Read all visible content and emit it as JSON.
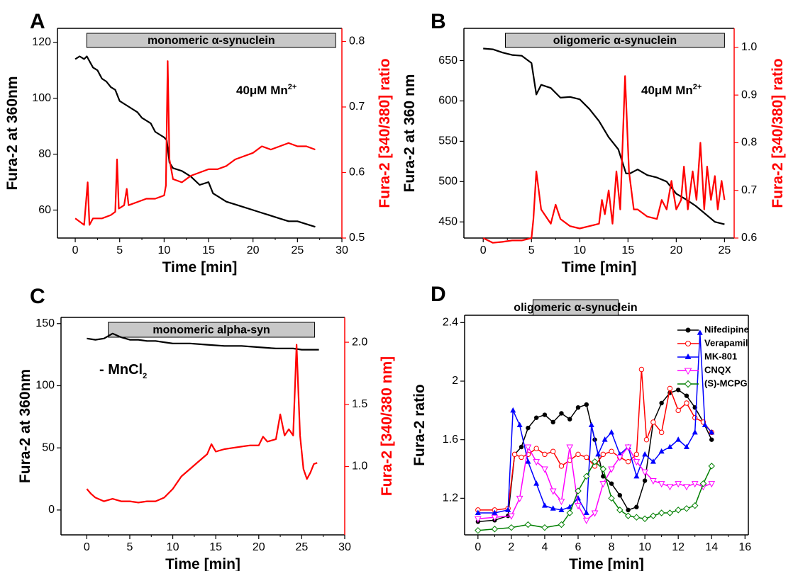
{
  "colors": {
    "black": "#000000",
    "red": "#ff0000",
    "blue": "#0000ff",
    "magenta": "#ff00ff",
    "green": "#007f00",
    "banner": "#c8c8c8"
  },
  "chart_data": [
    {
      "panel": "A",
      "type": "line",
      "banner": "monomeric α-synuclein",
      "annotation": "40μM Mn",
      "annotation_sup": "2+",
      "xlabel": "Time [min]",
      "ylabel": "Fura-2 at 360nm",
      "ylabel_right": "Fura-2 [340/380] ratio",
      "xlim": [
        -2,
        30
      ],
      "ylim": [
        50,
        125
      ],
      "ylim_right": [
        0.5,
        0.82
      ],
      "xticks": [
        0,
        5,
        10,
        15,
        20,
        25,
        30
      ],
      "yticks": [
        60,
        80,
        100,
        120
      ],
      "yticks_right": [
        0.5,
        0.6,
        0.7,
        0.8
      ],
      "series": [
        {
          "axis": "left",
          "color": "black",
          "x": [
            0,
            0.5,
            1,
            1.3,
            2,
            2.5,
            3,
            3.5,
            4,
            4.5,
            5,
            6,
            7,
            7.5,
            8,
            8.5,
            9,
            9.5,
            10,
            10.3,
            10.6,
            11,
            12,
            12.5,
            13,
            14,
            15,
            15.5,
            16,
            17,
            18,
            19,
            20,
            21,
            22,
            23,
            24,
            25,
            26,
            27
          ],
          "y": [
            114,
            115,
            114,
            115,
            111,
            110,
            107,
            106,
            104,
            103,
            99,
            97,
            95,
            93,
            92,
            91,
            88,
            87,
            86,
            85,
            77,
            75,
            74,
            73,
            72,
            69,
            70,
            66,
            65,
            63,
            62,
            61,
            60,
            59,
            58,
            57,
            56,
            56,
            55,
            54
          ]
        },
        {
          "axis": "right",
          "color": "red",
          "x": [
            0,
            1,
            1.4,
            1.6,
            2,
            3,
            4,
            4.5,
            4.7,
            4.9,
            5.5,
            5.8,
            6,
            7,
            8,
            9,
            10,
            10.2,
            10.4,
            10.6,
            11,
            12,
            13,
            14,
            15,
            16,
            17,
            18,
            19,
            20,
            21,
            22,
            23,
            24,
            25,
            26,
            27
          ],
          "y": [
            0.53,
            0.52,
            0.585,
            0.52,
            0.53,
            0.53,
            0.535,
            0.54,
            0.62,
            0.545,
            0.55,
            0.575,
            0.55,
            0.555,
            0.56,
            0.56,
            0.565,
            0.58,
            0.77,
            0.62,
            0.59,
            0.585,
            0.595,
            0.6,
            0.605,
            0.605,
            0.61,
            0.62,
            0.625,
            0.63,
            0.64,
            0.635,
            0.64,
            0.645,
            0.64,
            0.64,
            0.635
          ]
        }
      ]
    },
    {
      "panel": "B",
      "type": "line",
      "banner": "oligomeric α-synuclein",
      "annotation": "40μM Mn",
      "annotation_sup": "2+",
      "xlabel": "Time [min]",
      "ylabel": "Fura-2 at 360 nm",
      "ylabel_right": "Fura-2 [340/380] ratio",
      "xlim": [
        -2,
        26
      ],
      "ylim": [
        430,
        690
      ],
      "ylim_right": [
        0.6,
        1.04
      ],
      "xticks": [
        0,
        5,
        10,
        15,
        20,
        25
      ],
      "yticks": [
        450,
        500,
        550,
        600,
        650
      ],
      "yticks_right": [
        0.6,
        0.7,
        0.8,
        0.9,
        1.0
      ],
      "series": [
        {
          "axis": "left",
          "color": "black",
          "x": [
            0,
            1,
            2,
            3,
            4,
            5,
            5.5,
            6,
            7,
            8,
            9,
            10,
            11,
            12,
            13,
            14,
            14.8,
            15.2,
            16,
            17,
            18,
            19,
            20,
            21,
            22,
            23,
            24,
            25
          ],
          "y": [
            665,
            664,
            660,
            657,
            656,
            647,
            608,
            620,
            616,
            604,
            605,
            602,
            590,
            575,
            555,
            540,
            510,
            510,
            515,
            508,
            505,
            500,
            485,
            478,
            470,
            460,
            450,
            447
          ]
        },
        {
          "axis": "right",
          "color": "red",
          "x": [
            0,
            0.5,
            1,
            2,
            3,
            4,
            5,
            5.2,
            5.5,
            6,
            7,
            7.5,
            8,
            9,
            10,
            11,
            12,
            12.3,
            12.6,
            13,
            13.4,
            13.8,
            14.2,
            14.7,
            15.1,
            15.6,
            16,
            17,
            18,
            18.5,
            19,
            19.5,
            20,
            20.5,
            20.8,
            21.2,
            21.7,
            22.1,
            22.5,
            22.9,
            23.2,
            23.6,
            24,
            24.3,
            24.7,
            25
          ],
          "y": [
            0.6,
            0.595,
            0.59,
            0.592,
            0.595,
            0.595,
            0.6,
            0.64,
            0.74,
            0.66,
            0.63,
            0.67,
            0.64,
            0.625,
            0.62,
            0.625,
            0.63,
            0.68,
            0.65,
            0.7,
            0.63,
            0.74,
            0.66,
            0.94,
            0.74,
            0.66,
            0.66,
            0.645,
            0.64,
            0.68,
            0.66,
            0.72,
            0.66,
            0.68,
            0.75,
            0.66,
            0.74,
            0.68,
            0.8,
            0.66,
            0.75,
            0.68,
            0.73,
            0.66,
            0.72,
            0.68
          ]
        }
      ]
    },
    {
      "panel": "C",
      "type": "line",
      "banner": "monomeric alpha-syn",
      "annotation": "- MnCl",
      "annotation_sub": "2",
      "xlabel": "Time [min]",
      "ylabel": "Fura-2 at 360nm",
      "ylabel_right": "Fura-2 [340/380 nm]",
      "xlim": [
        -3,
        30
      ],
      "ylim": [
        -20,
        155
      ],
      "ylim_right": [
        0.45,
        2.2
      ],
      "xticks": [
        0,
        5,
        10,
        15,
        20,
        25,
        30
      ],
      "yticks": [
        0,
        50,
        100,
        150
      ],
      "yticks_right": [
        1.0,
        1.5,
        2.0
      ],
      "series": [
        {
          "axis": "left",
          "color": "black",
          "x": [
            0,
            1,
            2,
            3,
            4,
            5,
            6,
            7,
            8,
            9,
            10,
            12,
            14,
            16,
            18,
            20,
            22,
            24,
            25,
            26,
            27
          ],
          "y": [
            138,
            137,
            138,
            142,
            139,
            137,
            137,
            136,
            136,
            135,
            134,
            134,
            133,
            132,
            132,
            131,
            130,
            130,
            129,
            129,
            129
          ]
        },
        {
          "axis": "right",
          "color": "red",
          "x": [
            0,
            0.5,
            1,
            2,
            3,
            4,
            5,
            6,
            7,
            8,
            9,
            10,
            11,
            12,
            13,
            14,
            14.5,
            15,
            16,
            17,
            18,
            19,
            20,
            20.5,
            21,
            22,
            22.5,
            23,
            23.5,
            24,
            24.4,
            24.8,
            25.2,
            25.6,
            26,
            26.4,
            26.8
          ],
          "y": [
            0.82,
            0.78,
            0.75,
            0.72,
            0.74,
            0.72,
            0.72,
            0.71,
            0.72,
            0.72,
            0.75,
            0.82,
            0.92,
            0.98,
            1.04,
            1.1,
            1.18,
            1.12,
            1.14,
            1.15,
            1.16,
            1.17,
            1.17,
            1.24,
            1.2,
            1.22,
            1.42,
            1.25,
            1.3,
            1.25,
            1.98,
            1.25,
            0.98,
            0.9,
            0.95,
            1.02,
            1.03
          ]
        }
      ]
    },
    {
      "panel": "D",
      "type": "line",
      "banner": "oligomeric α-synuclein",
      "xlabel": "Time [min]",
      "ylabel": "Fura-2 ratio",
      "xlim": [
        -0.8,
        16.2
      ],
      "ylim": [
        0.95,
        2.45
      ],
      "xticks": [
        0,
        2,
        4,
        6,
        8,
        10,
        12,
        14,
        16
      ],
      "yticks": [
        1.2,
        1.6,
        2.0,
        2.4
      ],
      "legend_position": "top-right",
      "series": [
        {
          "name": "Nifedipine",
          "color": "black",
          "marker": "filled-circle",
          "x": [
            0,
            1,
            1.8,
            2.2,
            2.6,
            3,
            3.5,
            4,
            4.5,
            5,
            5.5,
            6,
            6.5,
            7,
            7.5,
            8,
            8.5,
            9,
            9.5,
            10,
            10.5,
            11,
            11.5,
            12,
            12.5,
            13,
            13.5,
            14
          ],
          "y": [
            1.04,
            1.05,
            1.08,
            1.5,
            1.55,
            1.68,
            1.75,
            1.77,
            1.72,
            1.78,
            1.74,
            1.82,
            1.84,
            1.6,
            1.35,
            1.3,
            1.22,
            1.12,
            1.14,
            1.32,
            1.72,
            1.85,
            1.92,
            1.94,
            1.9,
            1.82,
            1.72,
            1.6
          ]
        },
        {
          "name": "Verapamil",
          "color": "red",
          "marker": "open-circle",
          "x": [
            0,
            1,
            1.8,
            2.2,
            2.6,
            3,
            3.5,
            4,
            4.5,
            5,
            5.5,
            6,
            6.5,
            7,
            7.5,
            8,
            8.5,
            9,
            9.5,
            9.8,
            10.1,
            10.5,
            11,
            11.5,
            12,
            12.5,
            13,
            13.5,
            14
          ],
          "y": [
            1.12,
            1.12,
            1.13,
            1.5,
            1.48,
            1.5,
            1.54,
            1.5,
            1.52,
            1.42,
            1.46,
            1.5,
            1.48,
            1.42,
            1.5,
            1.52,
            1.48,
            1.45,
            1.5,
            2.08,
            1.6,
            1.72,
            1.65,
            1.95,
            1.8,
            1.85,
            1.75,
            1.72,
            1.65
          ]
        },
        {
          "name": "MK-801",
          "color": "blue",
          "marker": "filled-triangle-up",
          "x": [
            0,
            1,
            1.8,
            2.1,
            2.5,
            3,
            3.5,
            4,
            4.5,
            5,
            5.5,
            6,
            6.5,
            6.8,
            7.2,
            7.6,
            8,
            8.5,
            9,
            9.5,
            10,
            10.5,
            11,
            11.5,
            12,
            12.5,
            13,
            13.3,
            13.6,
            14
          ],
          "y": [
            1.1,
            1.1,
            1.12,
            1.8,
            1.7,
            1.45,
            1.3,
            1.15,
            1.13,
            1.12,
            1.14,
            1.2,
            1.1,
            1.7,
            1.5,
            1.6,
            1.65,
            1.5,
            1.55,
            1.35,
            1.5,
            1.45,
            1.52,
            1.55,
            1.6,
            1.55,
            1.65,
            2.33,
            1.7,
            1.65
          ]
        },
        {
          "name": "CNQX",
          "color": "magenta",
          "marker": "open-triangle-down",
          "x": [
            0,
            1,
            2,
            2.5,
            3,
            3.5,
            4,
            4.5,
            5,
            5.5,
            6,
            6.5,
            7,
            7.5,
            8,
            8.5,
            9,
            9.5,
            10,
            10.5,
            11,
            11.5,
            12,
            12.5,
            13,
            13.5,
            14
          ],
          "y": [
            1.06,
            1.07,
            1.08,
            1.2,
            1.55,
            1.45,
            1.4,
            1.25,
            1.18,
            1.55,
            1.15,
            1.05,
            1.1,
            1.3,
            1.4,
            1.48,
            1.55,
            1.45,
            1.38,
            1.32,
            1.3,
            1.28,
            1.3,
            1.28,
            1.3,
            1.28,
            1.3
          ]
        },
        {
          "name": "(S)-MCPG",
          "color": "green",
          "marker": "diamond",
          "x": [
            0,
            1,
            2,
            3,
            4,
            5,
            5.5,
            6,
            6.5,
            7,
            7.5,
            8,
            8.5,
            9,
            9.5,
            10,
            10.5,
            11,
            11.5,
            12,
            12.5,
            13,
            13.5,
            14
          ],
          "y": [
            0.98,
            0.99,
            1.0,
            1.02,
            1.0,
            1.02,
            1.1,
            1.25,
            1.35,
            1.45,
            1.4,
            1.2,
            1.12,
            1.08,
            1.07,
            1.06,
            1.08,
            1.1,
            1.1,
            1.12,
            1.13,
            1.15,
            1.3,
            1.42
          ]
        }
      ]
    }
  ]
}
